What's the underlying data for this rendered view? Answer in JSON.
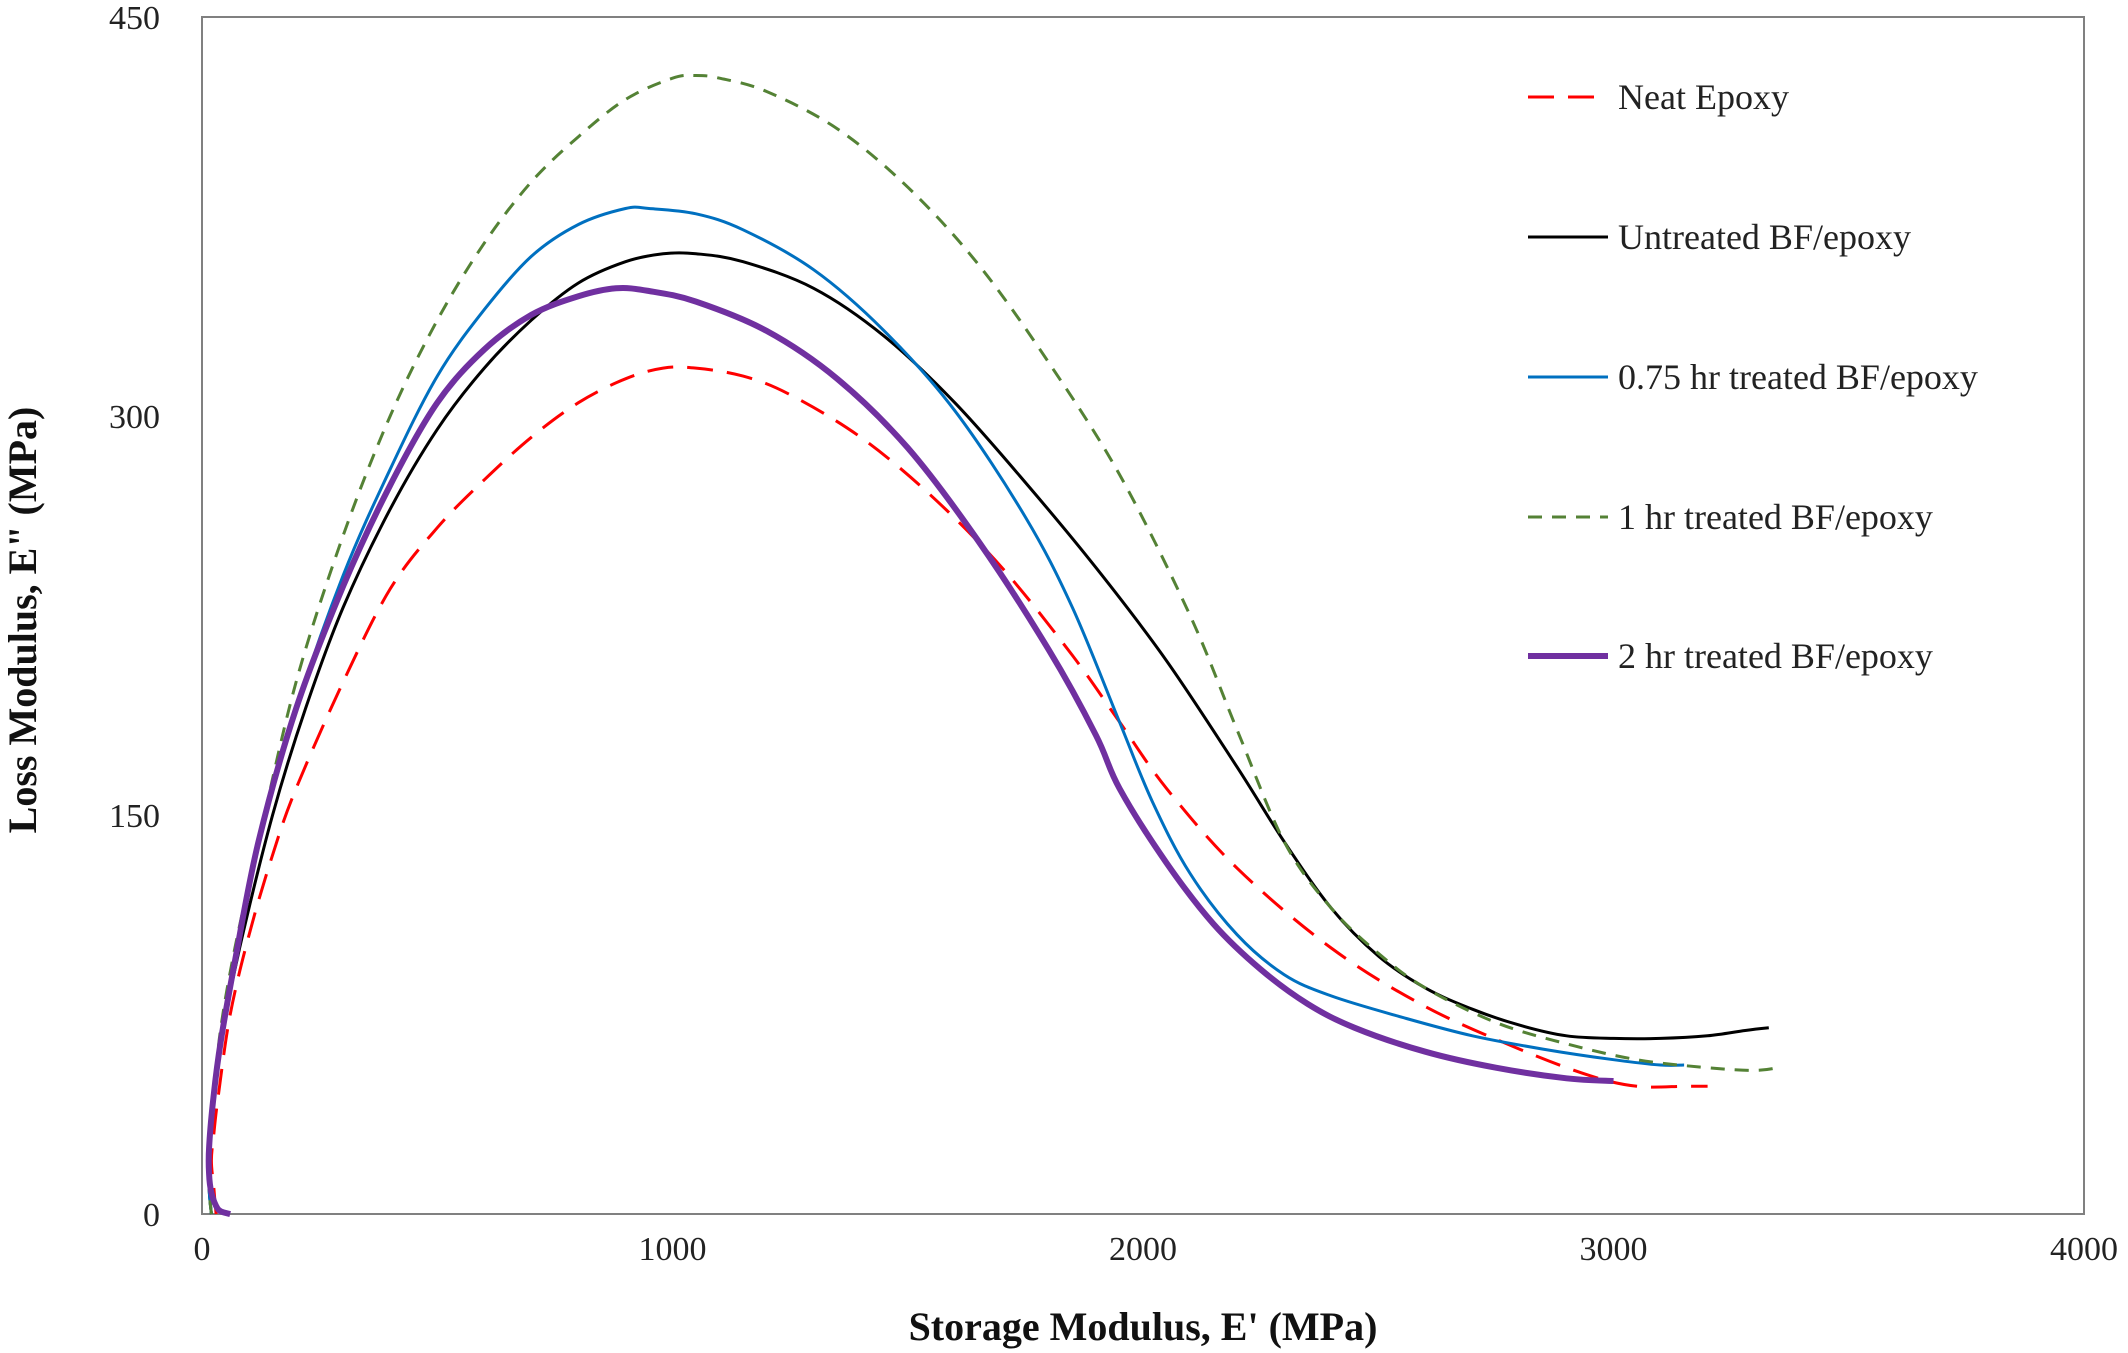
{
  "chart_data": {
    "type": "line",
    "title": "",
    "xlabel": "Storage Modulus, E' (MPa)",
    "ylabel": "Loss Modulus, E\" (MPa)",
    "xlim": [
      0,
      4000
    ],
    "ylim": [
      0,
      450
    ],
    "xticks": [
      0,
      1000,
      2000,
      3000,
      4000
    ],
    "yticks": [
      0,
      150,
      300,
      450
    ],
    "xtick_labels": [
      "0",
      "1000",
      "2000",
      "3000",
      "4000"
    ],
    "ytick_labels": [
      "0",
      "150",
      "300",
      "450"
    ],
    "grid": false,
    "legend_position": "top-right",
    "series": [
      {
        "name": "Neat Epoxy",
        "color": "#ff0000",
        "dash": "dashed",
        "width": 3,
        "points": [
          [
            30,
            0
          ],
          [
            25,
            10
          ],
          [
            20,
            20
          ],
          [
            25,
            30
          ],
          [
            35,
            45
          ],
          [
            60,
            75
          ],
          [
            100,
            105
          ],
          [
            150,
            135
          ],
          [
            200,
            160
          ],
          [
            300,
            200
          ],
          [
            400,
            235
          ],
          [
            500,
            258
          ],
          [
            600,
            276
          ],
          [
            700,
            292
          ],
          [
            800,
            305
          ],
          [
            900,
            314
          ],
          [
            980,
            318
          ],
          [
            1050,
            318
          ],
          [
            1150,
            315
          ],
          [
            1250,
            308
          ],
          [
            1400,
            292
          ],
          [
            1550,
            270
          ],
          [
            1700,
            243
          ],
          [
            1850,
            210
          ],
          [
            1950,
            185
          ],
          [
            2050,
            160
          ],
          [
            2200,
            130
          ],
          [
            2400,
            100
          ],
          [
            2600,
            78
          ],
          [
            2800,
            62
          ],
          [
            2950,
            52
          ],
          [
            3050,
            48
          ],
          [
            3150,
            48
          ],
          [
            3200,
            48
          ]
        ]
      },
      {
        "name": "Untreated BF/epoxy",
        "color": "#000000",
        "dash": "solid",
        "width": 3,
        "points": [
          [
            20,
            0
          ],
          [
            15,
            10
          ],
          [
            15,
            25
          ],
          [
            25,
            45
          ],
          [
            40,
            65
          ],
          [
            80,
            100
          ],
          [
            150,
            150
          ],
          [
            220,
            190
          ],
          [
            300,
            228
          ],
          [
            400,
            265
          ],
          [
            500,
            295
          ],
          [
            600,
            318
          ],
          [
            700,
            336
          ],
          [
            800,
            350
          ],
          [
            900,
            358
          ],
          [
            980,
            361
          ],
          [
            1050,
            361
          ],
          [
            1150,
            358
          ],
          [
            1300,
            348
          ],
          [
            1450,
            330
          ],
          [
            1600,
            305
          ],
          [
            1750,
            275
          ],
          [
            1900,
            243
          ],
          [
            2050,
            208
          ],
          [
            2200,
            168
          ],
          [
            2300,
            140
          ],
          [
            2400,
            115
          ],
          [
            2500,
            97
          ],
          [
            2600,
            85
          ],
          [
            2700,
            77
          ],
          [
            2800,
            71
          ],
          [
            2900,
            67
          ],
          [
            3000,
            66
          ],
          [
            3100,
            66
          ],
          [
            3200,
            67
          ],
          [
            3280,
            69
          ],
          [
            3330,
            70
          ]
        ]
      },
      {
        "name": "0.75 hr treated BF/epoxy",
        "color": "#0070c0",
        "dash": "solid",
        "width": 3,
        "points": [
          [
            20,
            0
          ],
          [
            15,
            10
          ],
          [
            15,
            25
          ],
          [
            25,
            45
          ],
          [
            40,
            65
          ],
          [
            70,
            95
          ],
          [
            120,
            140
          ],
          [
            200,
            190
          ],
          [
            300,
            240
          ],
          [
            400,
            280
          ],
          [
            500,
            315
          ],
          [
            600,
            340
          ],
          [
            700,
            360
          ],
          [
            800,
            372
          ],
          [
            900,
            378
          ],
          [
            950,
            378
          ],
          [
            1050,
            376
          ],
          [
            1150,
            370
          ],
          [
            1300,
            355
          ],
          [
            1450,
            332
          ],
          [
            1600,
            302
          ],
          [
            1750,
            262
          ],
          [
            1850,
            228
          ],
          [
            1950,
            185
          ],
          [
            2020,
            155
          ],
          [
            2100,
            128
          ],
          [
            2200,
            105
          ],
          [
            2300,
            90
          ],
          [
            2400,
            82
          ],
          [
            2550,
            74
          ],
          [
            2700,
            67
          ],
          [
            2850,
            62
          ],
          [
            3000,
            58
          ],
          [
            3100,
            56
          ],
          [
            3150,
            56
          ]
        ]
      },
      {
        "name": "1 hr treated BF/epoxy",
        "color": "#548235",
        "dash": "dashed",
        "width": 3,
        "points": [
          [
            20,
            0
          ],
          [
            15,
            10
          ],
          [
            15,
            25
          ],
          [
            25,
            45
          ],
          [
            40,
            70
          ],
          [
            70,
            100
          ],
          [
            120,
            140
          ],
          [
            200,
            200
          ],
          [
            300,
            255
          ],
          [
            400,
            300
          ],
          [
            500,
            336
          ],
          [
            600,
            365
          ],
          [
            700,
            388
          ],
          [
            800,
            405
          ],
          [
            900,
            419
          ],
          [
            1000,
            427
          ],
          [
            1050,
            428
          ],
          [
            1100,
            427
          ],
          [
            1200,
            422
          ],
          [
            1350,
            408
          ],
          [
            1500,
            386
          ],
          [
            1650,
            357
          ],
          [
            1800,
            320
          ],
          [
            1950,
            278
          ],
          [
            2100,
            225
          ],
          [
            2200,
            182
          ],
          [
            2300,
            140
          ],
          [
            2400,
            115
          ],
          [
            2500,
            98
          ],
          [
            2600,
            85
          ],
          [
            2750,
            72
          ],
          [
            2900,
            64
          ],
          [
            3050,
            58
          ],
          [
            3200,
            55
          ],
          [
            3300,
            54
          ],
          [
            3350,
            55
          ]
        ]
      },
      {
        "name": "2 hr treated BF/epoxy",
        "color": "#7030a0",
        "dash": "solid",
        "width": 6,
        "points": [
          [
            60,
            0
          ],
          [
            40,
            1
          ],
          [
            30,
            3
          ],
          [
            20,
            8
          ],
          [
            15,
            15
          ],
          [
            15,
            25
          ],
          [
            25,
            45
          ],
          [
            40,
            65
          ],
          [
            70,
            95
          ],
          [
            120,
            140
          ],
          [
            200,
            190
          ],
          [
            300,
            236
          ],
          [
            400,
            274
          ],
          [
            500,
            305
          ],
          [
            600,
            325
          ],
          [
            700,
            338
          ],
          [
            800,
            345
          ],
          [
            880,
            348
          ],
          [
            950,
            347
          ],
          [
            1050,
            343
          ],
          [
            1200,
            332
          ],
          [
            1350,
            314
          ],
          [
            1500,
            288
          ],
          [
            1650,
            253
          ],
          [
            1800,
            212
          ],
          [
            1900,
            180
          ],
          [
            1950,
            160
          ],
          [
            2050,
            132
          ],
          [
            2150,
            109
          ],
          [
            2250,
            92
          ],
          [
            2350,
            79
          ],
          [
            2450,
            70
          ],
          [
            2600,
            61
          ],
          [
            2750,
            55
          ],
          [
            2900,
            51
          ],
          [
            3000,
            50
          ]
        ]
      }
    ]
  }
}
